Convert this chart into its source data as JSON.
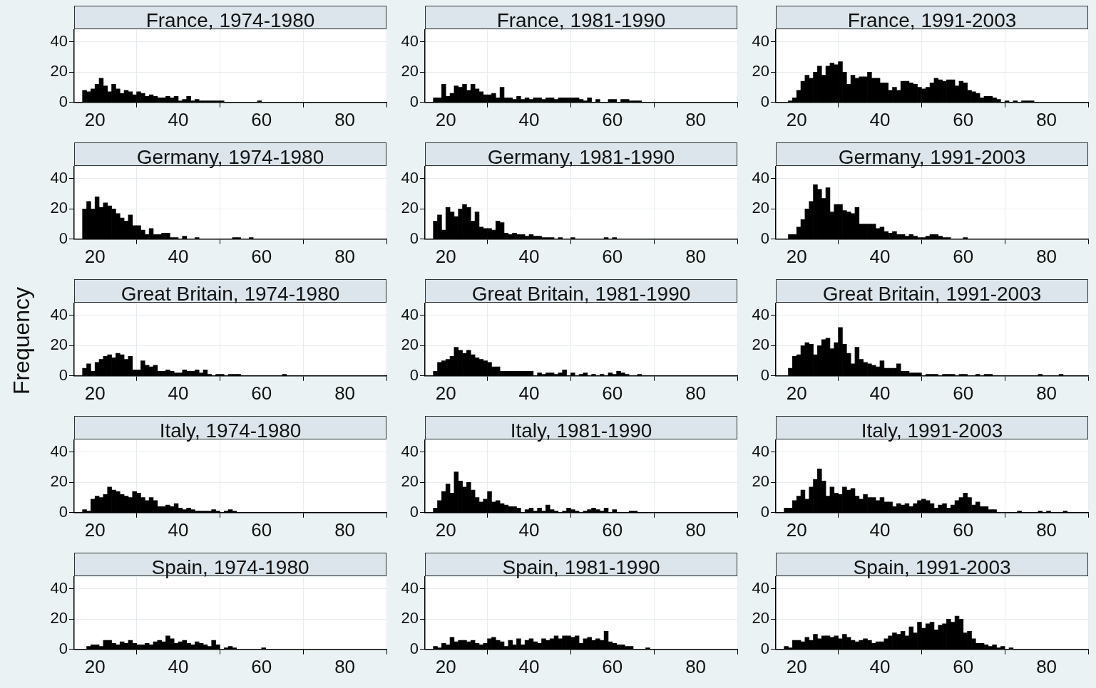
{
  "chart_data": [
    {
      "type": "histogram",
      "title": "France, 1974-1980",
      "color": "#000000",
      "bins": [
        17,
        18,
        19,
        20,
        21,
        22,
        23,
        24,
        25,
        26,
        27,
        28,
        29,
        30,
        31,
        32,
        33,
        34,
        35,
        36,
        37,
        38,
        39,
        40,
        41,
        42,
        43,
        44,
        45,
        46,
        47,
        48,
        49,
        50,
        51,
        52,
        53,
        54,
        55,
        56,
        57,
        58,
        59,
        60,
        61,
        62,
        63,
        64,
        65,
        66,
        67,
        68,
        69,
        70,
        71,
        72,
        73,
        74,
        75,
        76,
        77,
        78,
        79,
        80,
        81,
        82,
        83,
        84,
        85
      ],
      "values": [
        8,
        7,
        9,
        12,
        16,
        11,
        7,
        12,
        9,
        6,
        8,
        7,
        5,
        7,
        6,
        4,
        5,
        4,
        3,
        3,
        4,
        3,
        4,
        1,
        2,
        4,
        1,
        2,
        1,
        1,
        1,
        1,
        1,
        1,
        0,
        0,
        0,
        0,
        0,
        0,
        0,
        0,
        1,
        0,
        0,
        0,
        0,
        0,
        0,
        0,
        0,
        0,
        0,
        0,
        0,
        0,
        0,
        0,
        0,
        0,
        0,
        0,
        0,
        0,
        0,
        0,
        0,
        0
      ],
      "xlim": [
        15,
        90
      ],
      "xticks": [
        20,
        40,
        60,
        80
      ],
      "ylim": [
        0,
        48
      ],
      "yticks": [
        0,
        20,
        40
      ],
      "grid": true,
      "legend": false
    },
    {
      "type": "histogram",
      "title": "France, 1981-1990",
      "color": "#000000",
      "bins": [
        17,
        18,
        19,
        20,
        21,
        22,
        23,
        24,
        25,
        26,
        27,
        28,
        29,
        30,
        31,
        32,
        33,
        34,
        35,
        36,
        37,
        38,
        39,
        40,
        41,
        42,
        43,
        44,
        45,
        46,
        47,
        48,
        49,
        50,
        51,
        52,
        53,
        54,
        55,
        56,
        57,
        58,
        59,
        60,
        61,
        62,
        63,
        64,
        65,
        66,
        67,
        68,
        69,
        70,
        71,
        72,
        73,
        74,
        75,
        76,
        77,
        78,
        79,
        80,
        81,
        82,
        83,
        84,
        85
      ],
      "values": [
        3,
        3,
        12,
        4,
        6,
        11,
        10,
        12,
        8,
        12,
        9,
        7,
        5,
        5,
        6,
        3,
        10,
        3,
        3,
        2,
        4,
        2,
        3,
        2,
        3,
        3,
        2,
        3,
        3,
        2,
        3,
        3,
        3,
        3,
        3,
        2,
        1,
        3,
        0,
        2,
        0,
        0,
        2,
        2,
        0,
        2,
        2,
        1,
        1,
        1,
        0,
        0,
        0,
        0,
        0,
        0,
        0,
        0,
        0,
        0,
        0,
        0,
        0,
        0,
        0,
        0,
        0,
        0
      ],
      "xlim": [
        15,
        90
      ],
      "xticks": [
        20,
        40,
        60,
        80
      ],
      "ylim": [
        0,
        48
      ],
      "yticks": [
        0,
        20,
        40
      ],
      "grid": true,
      "legend": false
    },
    {
      "type": "histogram",
      "title": "France, 1991-2003",
      "color": "#000000",
      "bins": [
        17,
        18,
        19,
        20,
        21,
        22,
        23,
        24,
        25,
        26,
        27,
        28,
        29,
        30,
        31,
        32,
        33,
        34,
        35,
        36,
        37,
        38,
        39,
        40,
        41,
        42,
        43,
        44,
        45,
        46,
        47,
        48,
        49,
        50,
        51,
        52,
        53,
        54,
        55,
        56,
        57,
        58,
        59,
        60,
        61,
        62,
        63,
        64,
        65,
        66,
        67,
        68,
        69,
        70,
        71,
        72,
        73,
        74,
        75,
        76,
        77,
        78,
        79,
        80,
        81,
        82,
        83,
        84,
        85
      ],
      "values": [
        0,
        1,
        3,
        8,
        14,
        18,
        16,
        20,
        24,
        18,
        24,
        26,
        25,
        27,
        20,
        12,
        18,
        16,
        17,
        17,
        20,
        16,
        16,
        13,
        13,
        8,
        10,
        8,
        14,
        14,
        13,
        12,
        10,
        9,
        10,
        13,
        16,
        15,
        14,
        15,
        15,
        11,
        14,
        13,
        8,
        7,
        6,
        3,
        4,
        4,
        3,
        2,
        0,
        1,
        0,
        1,
        0,
        1,
        1,
        1,
        0,
        0,
        0,
        0,
        0,
        0,
        0,
        0
      ],
      "xlim": [
        15,
        90
      ],
      "xticks": [
        20,
        40,
        60,
        80
      ],
      "ylim": [
        0,
        48
      ],
      "yticks": [
        0,
        20,
        40
      ],
      "grid": true,
      "legend": false
    },
    {
      "type": "histogram",
      "title": "Germany, 1974-1980",
      "color": "#000000",
      "bins": [
        17,
        18,
        19,
        20,
        21,
        22,
        23,
        24,
        25,
        26,
        27,
        28,
        29,
        30,
        31,
        32,
        33,
        34,
        35,
        36,
        37,
        38,
        39,
        40,
        41,
        42,
        43,
        44,
        45,
        46,
        47,
        48,
        49,
        50,
        51,
        52,
        53,
        54,
        55,
        56,
        57,
        58,
        59,
        60,
        61,
        62,
        63,
        64,
        65,
        66,
        67,
        68,
        69,
        70,
        71,
        72,
        73,
        74,
        75,
        76,
        77,
        78,
        79,
        80,
        81,
        82,
        83,
        84,
        85
      ],
      "values": [
        20,
        25,
        20,
        28,
        21,
        24,
        22,
        20,
        17,
        14,
        12,
        16,
        9,
        9,
        6,
        3,
        7,
        3,
        3,
        4,
        4,
        1,
        1,
        0,
        2,
        0,
        0,
        1,
        0,
        0,
        0,
        0,
        0,
        0,
        0,
        0,
        1,
        1,
        0,
        0,
        1,
        0,
        0,
        0,
        0,
        0,
        0,
        0,
        0,
        0,
        0,
        0,
        0,
        0,
        0,
        0,
        0,
        0,
        0,
        0,
        0,
        0,
        0,
        0,
        0,
        0,
        0,
        0
      ],
      "xlim": [
        15,
        90
      ],
      "xticks": [
        20,
        40,
        60,
        80
      ],
      "ylim": [
        0,
        48
      ],
      "yticks": [
        0,
        20,
        40
      ],
      "grid": true,
      "legend": false
    },
    {
      "type": "histogram",
      "title": "Germany, 1981-1990",
      "color": "#000000",
      "bins": [
        17,
        18,
        19,
        20,
        21,
        22,
        23,
        24,
        25,
        26,
        27,
        28,
        29,
        30,
        31,
        32,
        33,
        34,
        35,
        36,
        37,
        38,
        39,
        40,
        41,
        42,
        43,
        44,
        45,
        46,
        47,
        48,
        49,
        50,
        51,
        52,
        53,
        54,
        55,
        56,
        57,
        58,
        59,
        60,
        61,
        62,
        63,
        64,
        65,
        66,
        67,
        68,
        69,
        70,
        71,
        72,
        73,
        74,
        75,
        76,
        77,
        78,
        79,
        80,
        81,
        82,
        83,
        84,
        85
      ],
      "values": [
        12,
        16,
        6,
        21,
        18,
        15,
        20,
        23,
        21,
        12,
        18,
        8,
        7,
        7,
        6,
        12,
        11,
        4,
        3,
        4,
        3,
        3,
        2,
        3,
        2,
        2,
        1,
        1,
        1,
        0,
        1,
        0,
        0,
        1,
        0,
        0,
        0,
        0,
        0,
        0,
        0,
        1,
        0,
        1,
        0,
        0,
        0,
        0,
        0,
        0,
        0,
        0,
        0,
        0,
        0,
        0,
        0,
        0,
        0,
        0,
        0,
        0,
        0,
        0,
        0,
        0,
        0,
        0
      ],
      "xlim": [
        15,
        90
      ],
      "xticks": [
        20,
        40,
        60,
        80
      ],
      "ylim": [
        0,
        48
      ],
      "yticks": [
        0,
        20,
        40
      ],
      "grid": true,
      "legend": false
    },
    {
      "type": "histogram",
      "title": "Germany, 1991-2003",
      "color": "#000000",
      "bins": [
        17,
        18,
        19,
        20,
        21,
        22,
        23,
        24,
        25,
        26,
        27,
        28,
        29,
        30,
        31,
        32,
        33,
        34,
        35,
        36,
        37,
        38,
        39,
        40,
        41,
        42,
        43,
        44,
        45,
        46,
        47,
        48,
        49,
        50,
        51,
        52,
        53,
        54,
        55,
        56,
        57,
        58,
        59,
        60,
        61,
        62,
        63,
        64,
        65,
        66,
        67,
        68,
        69,
        70,
        71,
        72,
        73,
        74,
        75,
        76,
        77,
        78,
        79,
        80,
        81,
        82,
        83,
        84,
        85
      ],
      "values": [
        0,
        3,
        3,
        8,
        13,
        20,
        25,
        36,
        33,
        27,
        34,
        18,
        23,
        23,
        19,
        18,
        17,
        21,
        10,
        10,
        10,
        10,
        7,
        8,
        5,
        4,
        5,
        3,
        3,
        2,
        3,
        2,
        1,
        1,
        2,
        3,
        3,
        2,
        1,
        1,
        0,
        0,
        0,
        1,
        0,
        0,
        0,
        0,
        0,
        0,
        0,
        0,
        0,
        0,
        0,
        0,
        0,
        0,
        0,
        0,
        0,
        0,
        0,
        0,
        0,
        0,
        0,
        0
      ],
      "xlim": [
        15,
        90
      ],
      "xticks": [
        20,
        40,
        60,
        80
      ],
      "ylim": [
        0,
        48
      ],
      "yticks": [
        0,
        20,
        40
      ],
      "grid": true,
      "legend": false
    },
    {
      "type": "histogram",
      "title": "Great Britain, 1974-1980",
      "ylabel": "Frequency",
      "color": "#000000",
      "bins": [
        17,
        18,
        19,
        20,
        21,
        22,
        23,
        24,
        25,
        26,
        27,
        28,
        29,
        30,
        31,
        32,
        33,
        34,
        35,
        36,
        37,
        38,
        39,
        40,
        41,
        42,
        43,
        44,
        45,
        46,
        47,
        48,
        49,
        50,
        51,
        52,
        53,
        54,
        55,
        56,
        57,
        58,
        59,
        60,
        61,
        62,
        63,
        64,
        65,
        66,
        67,
        68,
        69,
        70,
        71,
        72,
        73,
        74,
        75,
        76,
        77,
        78,
        79,
        80,
        81,
        82,
        83,
        84,
        85
      ],
      "values": [
        5,
        8,
        3,
        9,
        11,
        13,
        14,
        12,
        15,
        14,
        11,
        13,
        4,
        4,
        10,
        7,
        6,
        7,
        3,
        3,
        4,
        3,
        2,
        2,
        4,
        3,
        3,
        4,
        2,
        4,
        1,
        0,
        1,
        1,
        0,
        1,
        1,
        1,
        0,
        0,
        0,
        0,
        0,
        0,
        0,
        0,
        0,
        0,
        1,
        0,
        0,
        0,
        0,
        0,
        0,
        0,
        0,
        0,
        0,
        0,
        0,
        0,
        0,
        0,
        0,
        0,
        0,
        0
      ],
      "xlim": [
        15,
        90
      ],
      "xticks": [
        20,
        40,
        60,
        80
      ],
      "ylim": [
        0,
        48
      ],
      "yticks": [
        0,
        20,
        40
      ],
      "grid": true,
      "legend": false
    },
    {
      "type": "histogram",
      "title": "Great Britain, 1981-1990",
      "color": "#000000",
      "bins": [
        17,
        18,
        19,
        20,
        21,
        22,
        23,
        24,
        25,
        26,
        27,
        28,
        29,
        30,
        31,
        32,
        33,
        34,
        35,
        36,
        37,
        38,
        39,
        40,
        41,
        42,
        43,
        44,
        45,
        46,
        47,
        48,
        49,
        50,
        51,
        52,
        53,
        54,
        55,
        56,
        57,
        58,
        59,
        60,
        61,
        62,
        63,
        64,
        65,
        66,
        67,
        68,
        69,
        70,
        71,
        72,
        73,
        74,
        75,
        76,
        77,
        78,
        79,
        80,
        81,
        82,
        83,
        84,
        85
      ],
      "values": [
        3,
        9,
        10,
        11,
        13,
        19,
        17,
        15,
        17,
        14,
        12,
        11,
        10,
        9,
        6,
        6,
        3,
        3,
        3,
        3,
        3,
        3,
        3,
        3,
        0,
        2,
        1,
        2,
        2,
        1,
        2,
        4,
        0,
        2,
        0,
        1,
        2,
        0,
        1,
        0,
        1,
        0,
        2,
        1,
        3,
        2,
        1,
        0,
        0,
        1,
        0,
        0,
        0,
        0,
        0,
        0,
        0,
        0,
        0,
        0,
        0,
        0,
        0,
        0,
        0,
        0,
        0,
        0
      ],
      "xlim": [
        15,
        90
      ],
      "xticks": [
        20,
        40,
        60,
        80
      ],
      "ylim": [
        0,
        48
      ],
      "yticks": [
        0,
        20,
        40
      ],
      "grid": true,
      "legend": false
    },
    {
      "type": "histogram",
      "title": "Great Britain, 1991-2003",
      "color": "#000000",
      "bins": [
        17,
        18,
        19,
        20,
        21,
        22,
        23,
        24,
        25,
        26,
        27,
        28,
        29,
        30,
        31,
        32,
        33,
        34,
        35,
        36,
        37,
        38,
        39,
        40,
        41,
        42,
        43,
        44,
        45,
        46,
        47,
        48,
        49,
        50,
        51,
        52,
        53,
        54,
        55,
        56,
        57,
        58,
        59,
        60,
        61,
        62,
        63,
        64,
        65,
        66,
        67,
        68,
        69,
        70,
        71,
        72,
        73,
        74,
        75,
        76,
        77,
        78,
        79,
        80,
        81,
        82,
        83,
        84,
        85
      ],
      "values": [
        0,
        5,
        13,
        14,
        20,
        22,
        21,
        14,
        20,
        24,
        25,
        18,
        22,
        32,
        21,
        15,
        8,
        19,
        11,
        9,
        8,
        7,
        6,
        10,
        5,
        5,
        5,
        8,
        3,
        3,
        2,
        2,
        2,
        0,
        1,
        1,
        1,
        0,
        1,
        1,
        1,
        0,
        1,
        1,
        0,
        0,
        1,
        0,
        1,
        1,
        0,
        0,
        0,
        0,
        0,
        0,
        0,
        0,
        0,
        0,
        0,
        1,
        0,
        0,
        0,
        0,
        1,
        0
      ],
      "xlim": [
        15,
        90
      ],
      "xticks": [
        20,
        40,
        60,
        80
      ],
      "ylim": [
        0,
        48
      ],
      "yticks": [
        0,
        20,
        40
      ],
      "grid": true,
      "legend": false
    },
    {
      "type": "histogram",
      "title": "Italy, 1974-1980",
      "color": "#000000",
      "bins": [
        17,
        18,
        19,
        20,
        21,
        22,
        23,
        24,
        25,
        26,
        27,
        28,
        29,
        30,
        31,
        32,
        33,
        34,
        35,
        36,
        37,
        38,
        39,
        40,
        41,
        42,
        43,
        44,
        45,
        46,
        47,
        48,
        49,
        50,
        51,
        52,
        53,
        54,
        55,
        56,
        57,
        58,
        59,
        60,
        61,
        62,
        63,
        64,
        65,
        66,
        67,
        68,
        69,
        70,
        71,
        72,
        73,
        74,
        75,
        76,
        77,
        78,
        79,
        80,
        81,
        82,
        83,
        84,
        85
      ],
      "values": [
        2,
        1,
        9,
        11,
        10,
        12,
        17,
        15,
        14,
        12,
        11,
        10,
        14,
        13,
        10,
        8,
        10,
        8,
        4,
        4,
        5,
        4,
        6,
        3,
        2,
        3,
        2,
        1,
        1,
        1,
        1,
        2,
        1,
        0,
        1,
        2,
        1,
        0,
        0,
        0,
        0,
        0,
        0,
        0,
        0,
        0,
        0,
        0,
        0,
        0,
        0,
        0,
        0,
        0,
        0,
        0,
        0,
        0,
        0,
        0,
        0,
        0,
        0,
        0,
        0,
        0,
        0,
        0
      ],
      "xlim": [
        15,
        90
      ],
      "xticks": [
        20,
        40,
        60,
        80
      ],
      "ylim": [
        0,
        48
      ],
      "yticks": [
        0,
        20,
        40
      ],
      "grid": true,
      "legend": false
    },
    {
      "type": "histogram",
      "title": "Italy, 1981-1990",
      "color": "#000000",
      "bins": [
        17,
        18,
        19,
        20,
        21,
        22,
        23,
        24,
        25,
        26,
        27,
        28,
        29,
        30,
        31,
        32,
        33,
        34,
        35,
        36,
        37,
        38,
        39,
        40,
        41,
        42,
        43,
        44,
        45,
        46,
        47,
        48,
        49,
        50,
        51,
        52,
        53,
        54,
        55,
        56,
        57,
        58,
        59,
        60,
        61,
        62,
        63,
        64,
        65,
        66,
        67,
        68,
        69,
        70,
        71,
        72,
        73,
        74,
        75,
        76,
        77,
        78,
        79,
        80,
        81,
        82,
        83,
        84,
        85
      ],
      "values": [
        3,
        8,
        14,
        19,
        13,
        27,
        21,
        17,
        20,
        15,
        10,
        7,
        9,
        14,
        7,
        8,
        6,
        5,
        4,
        4,
        3,
        0,
        2,
        3,
        1,
        3,
        1,
        5,
        2,
        1,
        0,
        1,
        3,
        2,
        1,
        0,
        1,
        2,
        3,
        2,
        1,
        3,
        0,
        2,
        0,
        0,
        0,
        1,
        1,
        0,
        0,
        0,
        0,
        0,
        0,
        0,
        0,
        0,
        0,
        0,
        0,
        0,
        0,
        0,
        0,
        0,
        0,
        0
      ],
      "xlim": [
        15,
        90
      ],
      "xticks": [
        20,
        40,
        60,
        80
      ],
      "ylim": [
        0,
        48
      ],
      "yticks": [
        0,
        20,
        40
      ],
      "grid": true,
      "legend": false
    },
    {
      "type": "histogram",
      "title": "Italy, 1991-2003",
      "color": "#000000",
      "bins": [
        17,
        18,
        19,
        20,
        21,
        22,
        23,
        24,
        25,
        26,
        27,
        28,
        29,
        30,
        31,
        32,
        33,
        34,
        35,
        36,
        37,
        38,
        39,
        40,
        41,
        42,
        43,
        44,
        45,
        46,
        47,
        48,
        49,
        50,
        51,
        52,
        53,
        54,
        55,
        56,
        57,
        58,
        59,
        60,
        61,
        62,
        63,
        64,
        65,
        66,
        67,
        68,
        69,
        70,
        71,
        72,
        73,
        74,
        75,
        76,
        77,
        78,
        79,
        80,
        81,
        82,
        83,
        84,
        85
      ],
      "values": [
        3,
        3,
        8,
        11,
        15,
        9,
        17,
        22,
        29,
        21,
        11,
        17,
        13,
        12,
        17,
        15,
        16,
        11,
        9,
        12,
        10,
        10,
        8,
        10,
        7,
        7,
        4,
        6,
        5,
        6,
        4,
        6,
        8,
        9,
        8,
        6,
        3,
        5,
        6,
        3,
        5,
        8,
        10,
        13,
        10,
        5,
        7,
        4,
        4,
        2,
        2,
        0,
        0,
        0,
        0,
        0,
        1,
        0,
        0,
        0,
        0,
        1,
        0,
        1,
        0,
        0,
        0,
        1
      ],
      "xlim": [
        15,
        90
      ],
      "xticks": [
        20,
        40,
        60,
        80
      ],
      "ylim": [
        0,
        48
      ],
      "yticks": [
        0,
        20,
        40
      ],
      "grid": true,
      "legend": false
    },
    {
      "type": "histogram",
      "title": "Spain, 1974-1980",
      "color": "#000000",
      "bins": [
        17,
        18,
        19,
        20,
        21,
        22,
        23,
        24,
        25,
        26,
        27,
        28,
        29,
        30,
        31,
        32,
        33,
        34,
        35,
        36,
        37,
        38,
        39,
        40,
        41,
        42,
        43,
        44,
        45,
        46,
        47,
        48,
        49,
        50,
        51,
        52,
        53,
        54,
        55,
        56,
        57,
        58,
        59,
        60,
        61,
        62,
        63,
        64,
        65,
        66,
        67,
        68,
        69,
        70,
        71,
        72,
        73,
        74,
        75,
        76,
        77,
        78,
        79,
        80,
        81,
        82,
        83,
        84,
        85
      ],
      "values": [
        0,
        2,
        3,
        3,
        2,
        6,
        6,
        4,
        3,
        5,
        4,
        6,
        4,
        3,
        3,
        4,
        3,
        5,
        6,
        5,
        9,
        7,
        4,
        5,
        6,
        4,
        3,
        5,
        4,
        3,
        2,
        6,
        3,
        0,
        1,
        2,
        1,
        0,
        0,
        0,
        0,
        0,
        0,
        1,
        0,
        0,
        0,
        0,
        0,
        0,
        0,
        0,
        0,
        0,
        0,
        0,
        0,
        0,
        0,
        0,
        0,
        0,
        0,
        0,
        0,
        0,
        0,
        0
      ],
      "xlim": [
        15,
        90
      ],
      "xticks": [
        20,
        40,
        60,
        80
      ],
      "ylim": [
        0,
        48
      ],
      "yticks": [
        0,
        20,
        40
      ],
      "grid": true,
      "legend": false
    },
    {
      "type": "histogram",
      "title": "Spain, 1981-1990",
      "color": "#000000",
      "bins": [
        17,
        18,
        19,
        20,
        21,
        22,
        23,
        24,
        25,
        26,
        27,
        28,
        29,
        30,
        31,
        32,
        33,
        34,
        35,
        36,
        37,
        38,
        39,
        40,
        41,
        42,
        43,
        44,
        45,
        46,
        47,
        48,
        49,
        50,
        51,
        52,
        53,
        54,
        55,
        56,
        57,
        58,
        59,
        60,
        61,
        62,
        63,
        64,
        65,
        66,
        67,
        68,
        69,
        70,
        71,
        72,
        73,
        74,
        75,
        76,
        77,
        78,
        79,
        80,
        81,
        82,
        83,
        84,
        85
      ],
      "values": [
        2,
        1,
        4,
        3,
        8,
        5,
        6,
        6,
        5,
        6,
        4,
        3,
        4,
        7,
        8,
        6,
        5,
        2,
        6,
        3,
        7,
        3,
        6,
        7,
        5,
        4,
        7,
        6,
        7,
        9,
        7,
        9,
        9,
        8,
        9,
        4,
        7,
        8,
        6,
        7,
        6,
        12,
        5,
        4,
        3,
        3,
        2,
        2,
        0,
        0,
        0,
        1,
        0,
        0,
        0,
        0,
        0,
        0,
        0,
        0,
        0,
        0,
        0,
        0,
        0,
        0,
        0,
        0
      ],
      "xlim": [
        15,
        90
      ],
      "xticks": [
        20,
        40,
        60,
        80
      ],
      "ylim": [
        0,
        48
      ],
      "yticks": [
        0,
        20,
        40
      ],
      "grid": true,
      "legend": false
    },
    {
      "type": "histogram",
      "title": "Spain, 1991-2003",
      "color": "#000000",
      "bins": [
        17,
        18,
        19,
        20,
        21,
        22,
        23,
        24,
        25,
        26,
        27,
        28,
        29,
        30,
        31,
        32,
        33,
        34,
        35,
        36,
        37,
        38,
        39,
        40,
        41,
        42,
        43,
        44,
        45,
        46,
        47,
        48,
        49,
        50,
        51,
        52,
        53,
        54,
        55,
        56,
        57,
        58,
        59,
        60,
        61,
        62,
        63,
        64,
        65,
        66,
        67,
        68,
        69,
        70,
        71,
        72,
        73,
        74,
        75,
        76,
        77,
        78,
        79,
        80,
        81,
        82,
        83,
        84,
        85
      ],
      "values": [
        2,
        1,
        6,
        6,
        5,
        8,
        6,
        10,
        7,
        9,
        9,
        8,
        9,
        7,
        10,
        8,
        6,
        5,
        6,
        7,
        6,
        4,
        5,
        5,
        7,
        9,
        11,
        10,
        12,
        9,
        15,
        11,
        18,
        14,
        17,
        18,
        13,
        16,
        17,
        20,
        18,
        22,
        20,
        11,
        12,
        7,
        4,
        4,
        3,
        2,
        3,
        1,
        2,
        0,
        1,
        0,
        0,
        0,
        0,
        0,
        0,
        0,
        0,
        0,
        0,
        0,
        0,
        0
      ],
      "xlim": [
        15,
        90
      ],
      "xticks": [
        20,
        40,
        60,
        80
      ],
      "ylim": [
        0,
        48
      ],
      "yticks": [
        0,
        20,
        40
      ],
      "grid": true,
      "legend": false
    }
  ]
}
